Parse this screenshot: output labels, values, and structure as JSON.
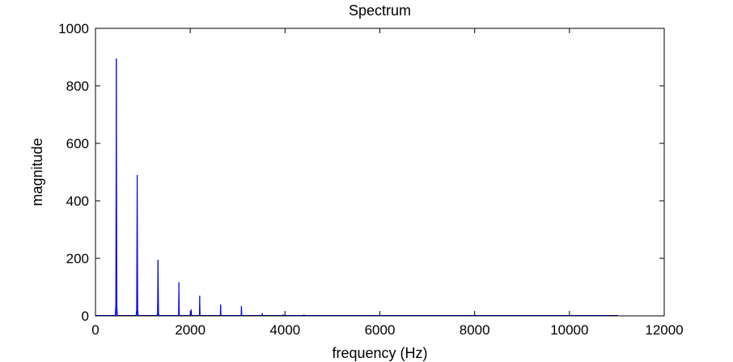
{
  "chart_data": {
    "type": "line",
    "title": "Spectrum",
    "xlabel": "frequency (Hz)",
    "ylabel": "magnitude",
    "xlim": [
      0,
      12000
    ],
    "ylim": [
      0,
      1000
    ],
    "xticks": [
      0,
      2000,
      4000,
      6000,
      8000,
      10000,
      12000
    ],
    "xtick_labels": [
      "0",
      "2000",
      "4000",
      "6000",
      "8000",
      "10000",
      "12000"
    ],
    "yticks": [
      0,
      200,
      400,
      600,
      800,
      1000
    ],
    "ytick_labels": [
      "0",
      "200",
      "400",
      "600",
      "800",
      "1000"
    ],
    "grid": false,
    "line_color": "#0000ff",
    "series": [
      {
        "peaks": [
          {
            "x": 440,
            "y": 895
          },
          {
            "x": 880,
            "y": 490
          },
          {
            "x": 1320,
            "y": 195
          },
          {
            "x": 1760,
            "y": 117
          },
          {
            "x": 2020,
            "y": 22
          },
          {
            "x": 2200,
            "y": 70
          },
          {
            "x": 2640,
            "y": 39
          },
          {
            "x": 3080,
            "y": 34
          },
          {
            "x": 3520,
            "y": 9
          },
          {
            "x": 3960,
            "y": 4
          },
          {
            "x": 4400,
            "y": 3
          },
          {
            "x": 5500,
            "y": 1.5
          },
          {
            "x": 6500,
            "y": 1
          }
        ],
        "x_end": 11025
      }
    ]
  }
}
